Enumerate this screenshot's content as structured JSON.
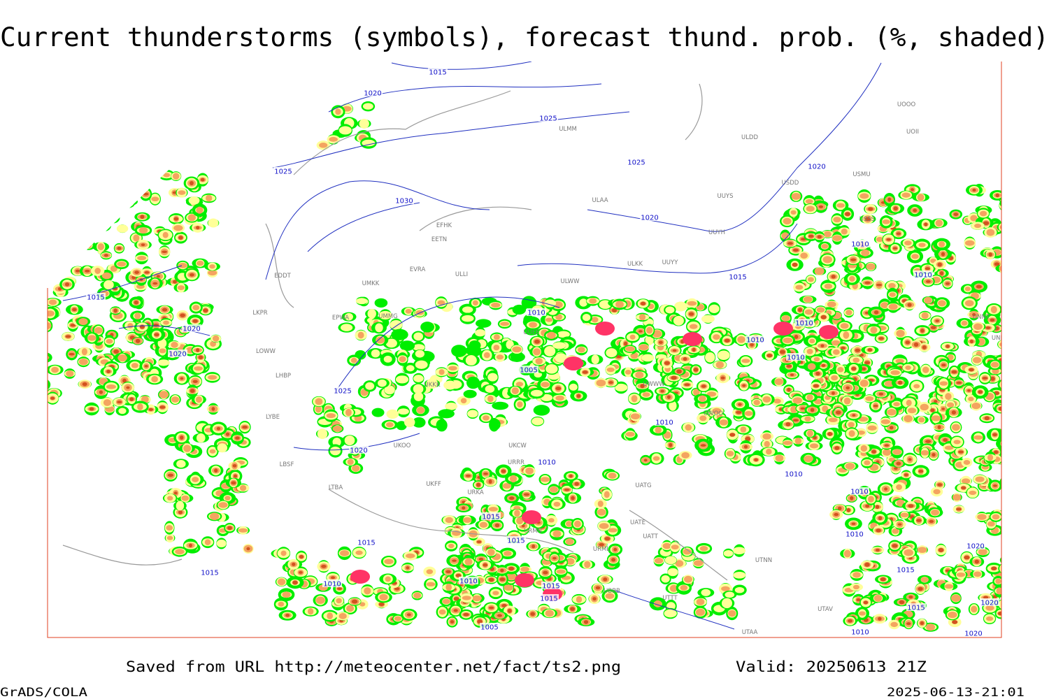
{
  "header": {
    "title": "Current thunderstorms (symbols), forecast thund. prob. (%, shaded)"
  },
  "map": {
    "isobar_labels": [
      "1015",
      "1020",
      "1025",
      "1025",
      "1025",
      "1020",
      "1030",
      "1020",
      "1015",
      "1015",
      "1020",
      "1020",
      "1010",
      "1010",
      "1010",
      "1010",
      "1010",
      "1010",
      "1005",
      "1025",
      "1020",
      "1010",
      "1010",
      "1010",
      "1010",
      "1015",
      "1015",
      "1015",
      "1010",
      "1020",
      "1015",
      "1015",
      "1010",
      "1010",
      "1015",
      "1015",
      "1020",
      "1015",
      "1005",
      "1010",
      "1020"
    ],
    "stations": [
      "EFHK",
      "EETN",
      "EVRA",
      "ULLI",
      "UMKK",
      "EDDT",
      "EPWA",
      "UMMG",
      "LKPR",
      "LOWW",
      "LHBP",
      "UKKK",
      "LYBE",
      "LBSF",
      "UKOO",
      "LTBA",
      "UKFF",
      "URKA",
      "UKCW",
      "URRR",
      "ULWW",
      "UWWW",
      "UUEE",
      "ULMM",
      "ULAA",
      "ULKK",
      "UUYY",
      "UUYH",
      "UUYS",
      "ULDD",
      "USDD",
      "USMU",
      "UOOO",
      "UOII",
      "UNNT",
      "UNBB",
      "UATG",
      "UATE",
      "UATT",
      "URML",
      "UBBB",
      "UTNN",
      "UTAV",
      "UTAA",
      "USSS",
      "UWOO",
      "URMN",
      "UTTT"
    ]
  },
  "footer": {
    "source": "Saved from URL http://meteocenter.net/fact/ts2.png",
    "valid": "Valid: 20250613 21Z",
    "software": "GrADS/COLA",
    "timestamp": "2025-06-13-21:01"
  }
}
